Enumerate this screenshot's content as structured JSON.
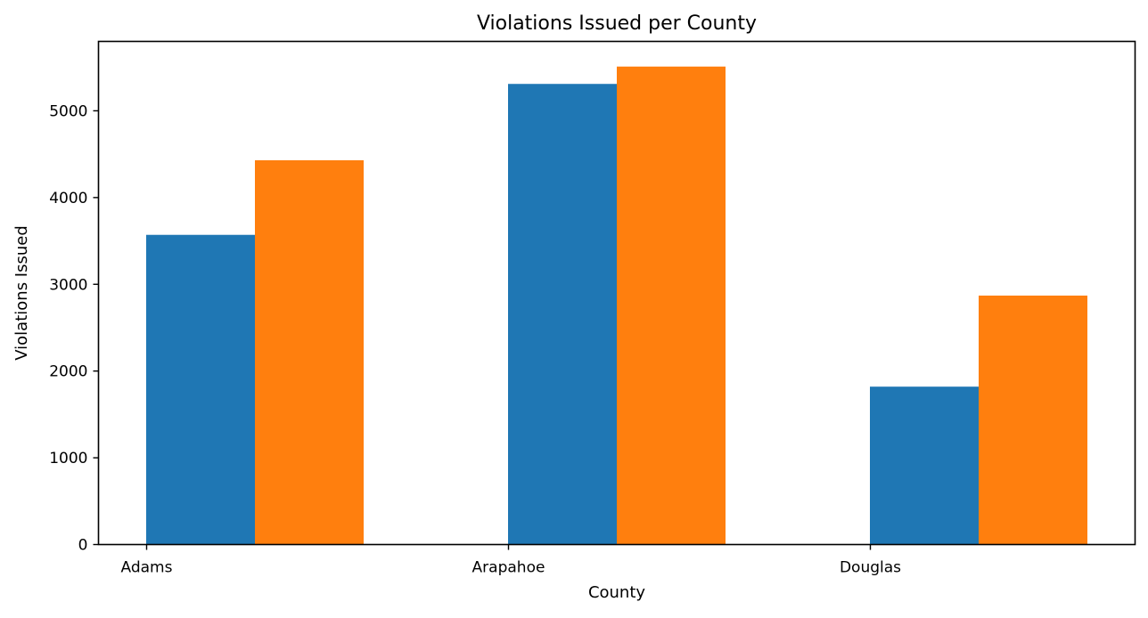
{
  "chart_data": {
    "type": "bar",
    "title": "Violations Issued per County",
    "xlabel": "County",
    "ylabel": "Violations Issued",
    "categories": [
      "Adams",
      "Arapahoe",
      "Douglas"
    ],
    "series": [
      {
        "values": [
          3570,
          5310,
          1820
        ],
        "color": "#1f77b4"
      },
      {
        "values": [
          4430,
          5510,
          2870
        ],
        "color": "#ff7f0e"
      }
    ],
    "ylim": [
      0,
      5800
    ],
    "yticks": [
      0,
      1000,
      2000,
      3000,
      4000,
      5000
    ],
    "grid": false,
    "legend": "none"
  }
}
